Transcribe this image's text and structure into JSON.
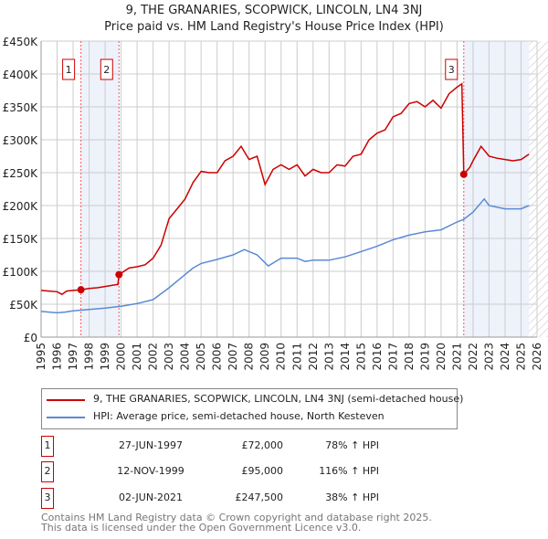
{
  "chart_data": {
    "type": "line",
    "title": "9, THE GRANARIES, SCOPWICK, LINCOLN, LN4 3NJ",
    "subtitle": "Price paid vs. HM Land Registry's House Price Index (HPI)",
    "xlim": [
      1995,
      2026
    ],
    "ylim": [
      0,
      450000
    ],
    "yticks": [
      {
        "v": 0,
        "label": "£0"
      },
      {
        "v": 50000,
        "label": "£50K"
      },
      {
        "v": 100000,
        "label": "£100K"
      },
      {
        "v": 150000,
        "label": "£150K"
      },
      {
        "v": 200000,
        "label": "£200K"
      },
      {
        "v": 250000,
        "label": "£250K"
      },
      {
        "v": 300000,
        "label": "£300K"
      },
      {
        "v": 350000,
        "label": "£350K"
      },
      {
        "v": 400000,
        "label": "£400K"
      },
      {
        "v": 450000,
        "label": "£450K"
      }
    ],
    "xticks": [
      "1995",
      "1996",
      "1997",
      "1998",
      "1999",
      "2000",
      "2001",
      "2002",
      "2003",
      "2004",
      "2005",
      "2006",
      "2007",
      "2008",
      "2009",
      "2010",
      "2011",
      "2012",
      "2013",
      "2014",
      "2015",
      "2016",
      "2017",
      "2018",
      "2019",
      "2020",
      "2021",
      "2022",
      "2023",
      "2024",
      "2025",
      "2026"
    ],
    "grid": true,
    "shaded_ranges": [
      [
        1997.49,
        1999.87
      ],
      [
        2021.42,
        2025.5
      ]
    ],
    "hatched_from": 2025.5,
    "series": [
      {
        "name": "9, THE GRANARIES, SCOPWICK, LINCOLN, LN4 3NJ (semi-detached house)",
        "color": "#cc0000",
        "x": [
          1995,
          1995.5,
          1996,
          1996.3,
          1996.6,
          1997,
          1997.49,
          1998,
          1998.5,
          1999,
          1999.5,
          1999.8,
          1999.87,
          2000.5,
          2001,
          2001.5,
          2002,
          2002.5,
          2003,
          2003.5,
          2004,
          2004.5,
          2005,
          2005.5,
          2006,
          2006.5,
          2007,
          2007.5,
          2008,
          2008.5,
          2009,
          2009.5,
          2010,
          2010.5,
          2011,
          2011.5,
          2012,
          2012.5,
          2013,
          2013.5,
          2014,
          2014.5,
          2015,
          2015.5,
          2016,
          2016.5,
          2017,
          2017.5,
          2018,
          2018.5,
          2019,
          2019.5,
          2020,
          2020.5,
          2021,
          2021.3,
          2021.42,
          2021.8,
          2022,
          2022.5,
          2023,
          2023.5,
          2024,
          2024.5,
          2025,
          2025.5
        ],
        "y": [
          71000,
          70000,
          69000,
          65000,
          70000,
          71000,
          72000,
          74000,
          75000,
          77000,
          79000,
          80000,
          95000,
          105000,
          107000,
          110000,
          120000,
          140000,
          180000,
          195000,
          210000,
          235000,
          252000,
          250000,
          250000,
          268000,
          275000,
          290000,
          270000,
          275000,
          232000,
          255000,
          262000,
          255000,
          262000,
          245000,
          255000,
          250000,
          250000,
          262000,
          260000,
          275000,
          278000,
          300000,
          310000,
          315000,
          335000,
          340000,
          355000,
          358000,
          350000,
          360000,
          348000,
          370000,
          380000,
          385000,
          247500,
          258000,
          268000,
          290000,
          275000,
          272000,
          270000,
          268000,
          270000,
          278000
        ]
      },
      {
        "name": "HPI: Average price, semi-detached house, North Kesteven",
        "color": "#5a8ad6",
        "x": [
          1995,
          1996,
          1996.5,
          1997,
          1998,
          1999,
          2000,
          2001,
          2002,
          2003,
          2004,
          2004.5,
          2005,
          2006,
          2007,
          2007.7,
          2008.5,
          2009.2,
          2010,
          2011,
          2011.5,
          2012,
          2013,
          2014,
          2015,
          2016,
          2017,
          2018,
          2019,
          2020,
          2021,
          2021.42,
          2022,
          2022.7,
          2023,
          2024,
          2025,
          2025.5
        ],
        "y": [
          39000,
          37000,
          38000,
          40000,
          42000,
          44000,
          47000,
          51000,
          57000,
          75000,
          95000,
          105000,
          112000,
          118000,
          125000,
          133000,
          125000,
          108000,
          120000,
          120000,
          115000,
          117000,
          117000,
          122000,
          130000,
          138000,
          148000,
          155000,
          160000,
          163000,
          175000,
          179000,
          190000,
          210000,
          200000,
          195000,
          195000,
          200000
        ]
      }
    ],
    "sales": [
      {
        "id": "1",
        "x": 1997.49,
        "y": 72000,
        "date": "27-JUN-1997",
        "price": "£72,000",
        "hpi": "78% ↑ HPI"
      },
      {
        "id": "2",
        "x": 1999.87,
        "y": 95000,
        "date": "12-NOV-1999",
        "price": "£95,000",
        "hpi": "116% ↑ HPI"
      },
      {
        "id": "3",
        "x": 2021.42,
        "y": 247500,
        "date": "02-JUN-2021",
        "price": "£247,500",
        "hpi": "38% ↑ HPI"
      }
    ]
  },
  "legend": {
    "price_label": "9, THE GRANARIES, SCOPWICK, LINCOLN, LN4 3NJ (semi-detached house)",
    "hpi_label": "HPI: Average price, semi-detached house, North Kesteven"
  },
  "footer": {
    "line1": "Contains HM Land Registry data © Crown copyright and database right 2025.",
    "line2": "This data is licensed under the Open Government Licence v3.0."
  }
}
